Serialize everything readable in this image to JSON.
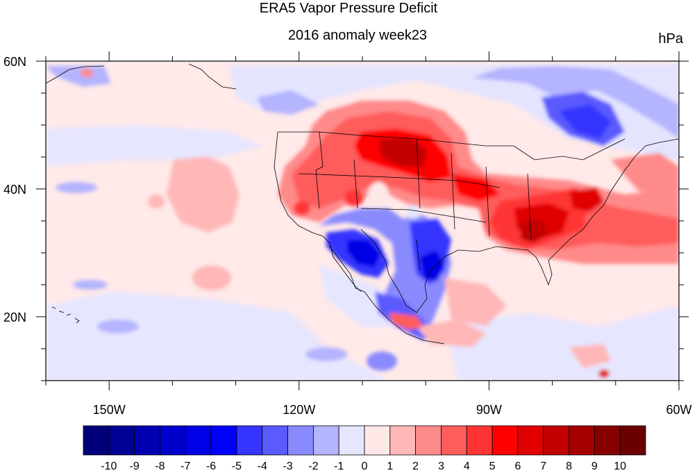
{
  "title": "ERA5 Vapor Pressure Deficit",
  "subtitle": "2016 anomaly week23",
  "units": "hPa",
  "map": {
    "lon_range": [
      -160,
      -60
    ],
    "lat_range": [
      10,
      60
    ],
    "x_ticks": [
      {
        "lon": -150,
        "label": "150W"
      },
      {
        "lon": -120,
        "label": "120W"
      },
      {
        "lon": -90,
        "label": "90W"
      },
      {
        "lon": -60,
        "label": "60W"
      }
    ],
    "y_ticks": [
      {
        "lat": 20,
        "label": "20N"
      },
      {
        "lat": 40,
        "label": "40N"
      },
      {
        "lat": 60,
        "label": "60N"
      }
    ]
  },
  "colorbar": {
    "labels": [
      "-10",
      "-9",
      "-8",
      "-7",
      "-6",
      "-5",
      "-4",
      "-3",
      "-2",
      "-1",
      "0",
      "1",
      "2",
      "3",
      "4",
      "5",
      "6",
      "7",
      "8",
      "9",
      "10"
    ],
    "colors": [
      "#00007a",
      "#000095",
      "#0000b0",
      "#0000cc",
      "#0000e6",
      "#0000ff",
      "#3535ff",
      "#5a5aff",
      "#8a8aff",
      "#b4b4ff",
      "#e6e6ff",
      "#ffe8e8",
      "#ffb7b7",
      "#ff8a8a",
      "#ff5c5c",
      "#ff3535",
      "#ff0000",
      "#e10000",
      "#c30000",
      "#a50000",
      "#870000",
      "#6a0000"
    ]
  },
  "chart_data": {
    "type": "heatmap",
    "title": "ERA5 Vapor Pressure Deficit",
    "subtitle": "2016 anomaly week23",
    "units": "hPa",
    "xlim": [
      -160,
      -60
    ],
    "ylim": [
      10,
      60
    ],
    "levels": [
      -10,
      -9,
      -8,
      -7,
      -6,
      -5,
      -4,
      -3,
      -2,
      -1,
      0,
      1,
      2,
      3,
      4,
      5,
      6,
      7,
      8,
      9,
      10
    ]
  }
}
